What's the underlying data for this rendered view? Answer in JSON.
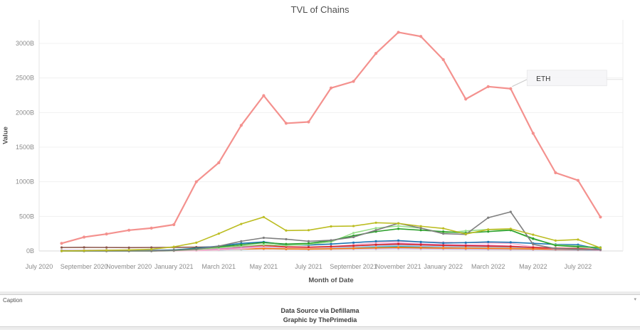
{
  "caption": {
    "panel_label": "Caption",
    "line1": "Data Source via Defillama",
    "line2": "Graphic by ThePrimedia",
    "menu_icon": "caret-down"
  },
  "chart_data": {
    "type": "line",
    "title": "TVL of Chains",
    "xlabel": "Month of Date",
    "ylabel": "Value",
    "legend": "none",
    "grid": "horizontal-light",
    "ylim": [
      0,
      3250
    ],
    "x_domain_months": [
      0,
      26
    ],
    "y_axis": {
      "ticks": [
        {
          "label": "0B",
          "value": 0
        },
        {
          "label": "500B",
          "value": 500
        },
        {
          "label": "1000B",
          "value": 1000
        },
        {
          "label": "1500B",
          "value": 1500
        },
        {
          "label": "2000B",
          "value": 2000
        },
        {
          "label": "2500B",
          "value": 2500
        },
        {
          "label": "3000B",
          "value": 3000
        }
      ]
    },
    "x_axis": {
      "ticks": [
        {
          "label": "July 2020",
          "month": 0
        },
        {
          "label": "September 2020",
          "month": 2
        },
        {
          "label": "November 2020",
          "month": 4
        },
        {
          "label": "January 2021",
          "month": 6
        },
        {
          "label": "March 2021",
          "month": 8
        },
        {
          "label": "May 2021",
          "month": 10
        },
        {
          "label": "July 2021",
          "month": 12
        },
        {
          "label": "September 2021",
          "month": 14
        },
        {
          "label": "November 2021",
          "month": 16
        },
        {
          "label": "January 2022",
          "month": 18
        },
        {
          "label": "March 2022",
          "month": 20
        },
        {
          "label": "May 2022",
          "month": 22
        },
        {
          "label": "July 2022",
          "month": 24
        }
      ]
    },
    "point_labels": [
      "Aug 2020",
      "Sep 2020",
      "Oct 2020",
      "Nov 2020",
      "Dec 2020",
      "Jan 2021",
      "Feb 2021",
      "Mar 2021",
      "Apr 2021",
      "May 2021",
      "Jun 2021",
      "Jul 2021",
      "Aug 2021",
      "Sep 2021",
      "Oct 2021",
      "Nov 2021",
      "Dec 2021",
      "Jan 2022",
      "Feb 2022",
      "Mar 2022",
      "Apr 2022",
      "May 2022",
      "Jun 2022",
      "Jul 2022",
      "Aug 2022"
    ],
    "first_point_month_offset": 1,
    "series": [
      {
        "name": "",
        "color": "#8c564b",
        "values": [
          50,
          52,
          50,
          48,
          50,
          52,
          55,
          60,
          58,
          55,
          50,
          48,
          50,
          55,
          60,
          58,
          55,
          50,
          48,
          45,
          42,
          35,
          30,
          28,
          20
        ]
      },
      {
        "name": "",
        "color": "#c5b0d5",
        "values": [
          10,
          10,
          12,
          12,
          12,
          15,
          18,
          22,
          25,
          28,
          25,
          22,
          25,
          28,
          30,
          32,
          30,
          28,
          25,
          22,
          20,
          18,
          15,
          12,
          10
        ]
      },
      {
        "name": "",
        "color": "#c7c7c7",
        "values": [
          0,
          0,
          0,
          0,
          0,
          3,
          10,
          22,
          40,
          55,
          45,
          40,
          48,
          60,
          75,
          85,
          75,
          65,
          60,
          55,
          50,
          35,
          25,
          20,
          10
        ]
      },
      {
        "name": "",
        "color": "#17becf",
        "values": [
          0,
          0,
          0,
          0,
          0,
          3,
          8,
          15,
          25,
          35,
          30,
          28,
          35,
          45,
          60,
          70,
          65,
          60,
          55,
          50,
          45,
          35,
          25,
          20,
          12
        ]
      },
      {
        "name": "",
        "color": "#aec7e8",
        "values": [
          0,
          0,
          0,
          0,
          0,
          4,
          10,
          20,
          35,
          50,
          40,
          38,
          45,
          55,
          70,
          80,
          70,
          60,
          55,
          50,
          45,
          35,
          28,
          22,
          12
        ]
      },
      {
        "name": "",
        "color": "#ff7f0e",
        "values": [
          0,
          0,
          0,
          0,
          0,
          5,
          12,
          20,
          28,
          35,
          30,
          28,
          32,
          38,
          45,
          50,
          45,
          42,
          40,
          38,
          35,
          30,
          25,
          22,
          15
        ]
      },
      {
        "name": "",
        "color": "#e377c2",
        "values": [
          0,
          0,
          0,
          0,
          0,
          5,
          15,
          30,
          50,
          70,
          55,
          50,
          60,
          75,
          95,
          110,
          100,
          90,
          85,
          80,
          70,
          50,
          30,
          25,
          12
        ]
      },
      {
        "name": "",
        "color": "#f7b6d2",
        "values": [
          0,
          0,
          0,
          0,
          0,
          0,
          5,
          15,
          30,
          60,
          50,
          45,
          60,
          90,
          120,
          135,
          130,
          125,
          120,
          115,
          110,
          60,
          35,
          30,
          15
        ]
      },
      {
        "name": "",
        "color": "#d62728",
        "values": [
          0,
          0,
          0,
          0,
          0,
          10,
          30,
          50,
          70,
          80,
          60,
          55,
          65,
          75,
          90,
          100,
          90,
          80,
          75,
          70,
          65,
          50,
          40,
          35,
          20
        ]
      },
      {
        "name": "",
        "color": "#1f77b4",
        "values": [
          0,
          0,
          0,
          0,
          5,
          15,
          40,
          70,
          110,
          130,
          90,
          85,
          100,
          120,
          140,
          150,
          130,
          115,
          120,
          130,
          125,
          110,
          95,
          90,
          25
        ]
      },
      {
        "name": "",
        "color": "#98df8a",
        "values": [
          0,
          0,
          0,
          0,
          0,
          5,
          20,
          45,
          70,
          90,
          80,
          95,
          130,
          260,
          330,
          360,
          330,
          260,
          290,
          310,
          300,
          170,
          90,
          70,
          40
        ]
      },
      {
        "name": "",
        "color": "#2ca02c",
        "values": [
          0,
          0,
          0,
          0,
          0,
          10,
          30,
          60,
          90,
          120,
          100,
          110,
          150,
          220,
          280,
          320,
          300,
          280,
          260,
          280,
          300,
          180,
          80,
          60,
          50
        ]
      },
      {
        "name": "",
        "color": "#7f7f7f",
        "values": [
          0,
          0,
          0,
          0,
          0,
          8,
          25,
          70,
          140,
          190,
          170,
          140,
          155,
          200,
          300,
          400,
          330,
          250,
          240,
          480,
          565,
          95,
          35,
          25,
          18
        ]
      },
      {
        "name": "",
        "color": "#bcbd22",
        "values": [
          0,
          5,
          10,
          15,
          25,
          60,
          120,
          250,
          390,
          490,
          295,
          300,
          355,
          360,
          408,
          398,
          357,
          326,
          245,
          310,
          320,
          235,
          150,
          165,
          45
        ]
      },
      {
        "name": "ETH",
        "color": "#f4918e",
        "values": [
          110,
          200,
          245,
          300,
          330,
          380,
          1000,
          1275,
          1815,
          2245,
          1845,
          1865,
          2355,
          2450,
          2855,
          3160,
          3100,
          2765,
          2195,
          2375,
          2345,
          1700,
          1130,
          1020,
          490
        ]
      }
    ],
    "annotation": {
      "label": "ETH",
      "series": "ETH",
      "point_index": 20
    }
  }
}
